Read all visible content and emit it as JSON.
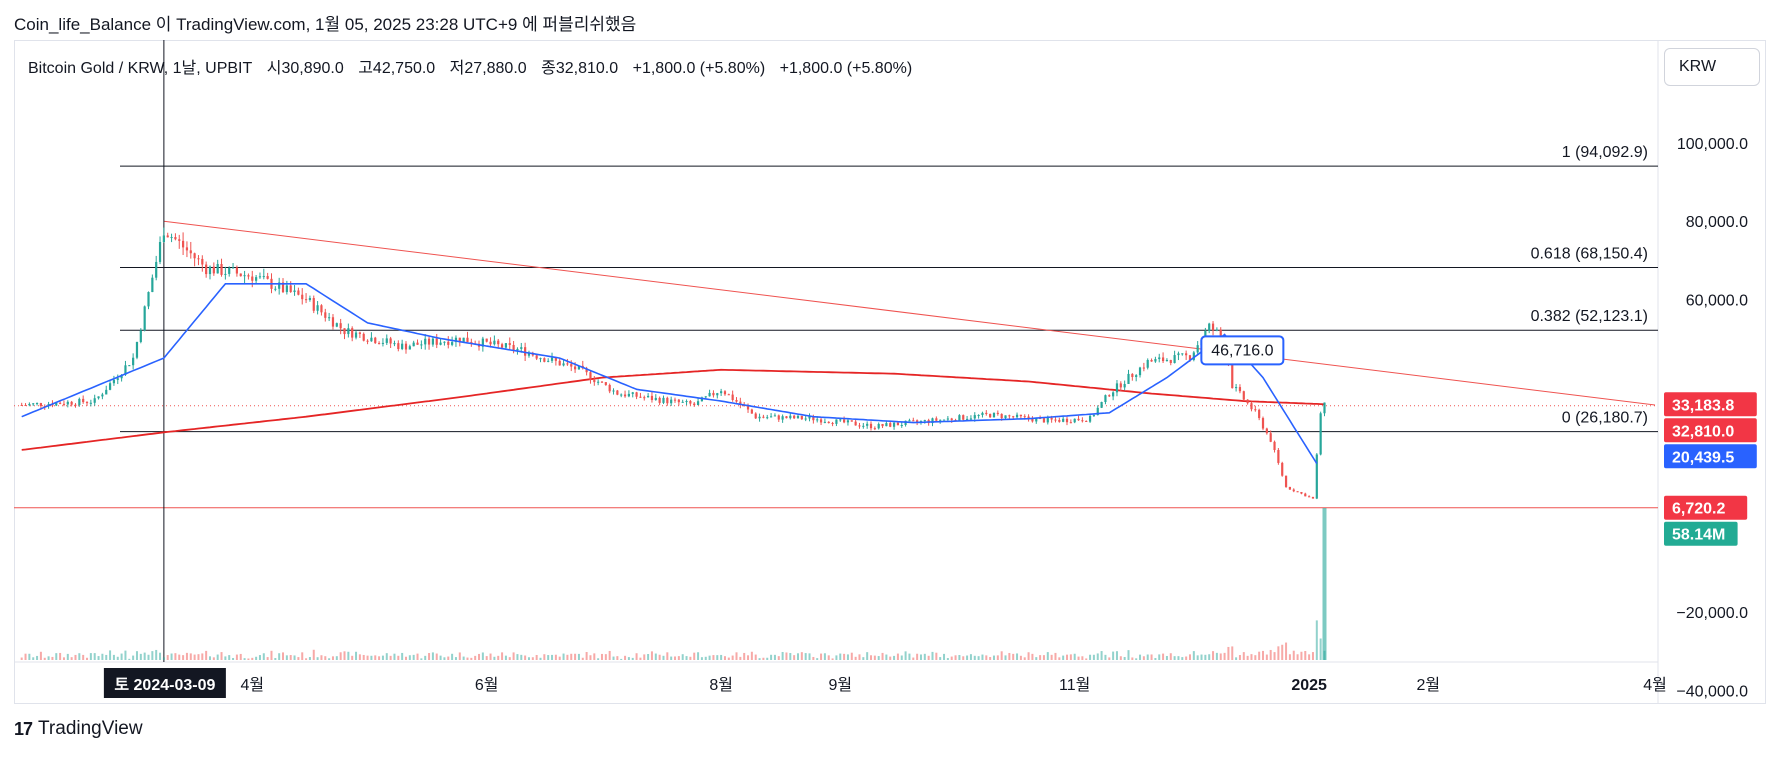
{
  "header": {
    "publisher": "Coin_life_Balance",
    "caption_rest": "이 TradingView.com, 1월 05, 2025 23:28 UTC+9 에 퍼블리쉬했음"
  },
  "legend": {
    "symbol": "Bitcoin Gold / KRW, 1날, UPBIT",
    "open": "시30,890.0",
    "high": "고42,750.0",
    "low": "저27,880.0",
    "close": "종32,810.0",
    "change1": "+1,800.0 (+5.80%)",
    "change2": "+1,800.0 (+5.80%)"
  },
  "currency_button": "KRW",
  "footer": {
    "brand": "TradingView",
    "mark": "17"
  },
  "colors": {
    "up": "#26a69a",
    "down": "#ef5350",
    "ma_blue": "#2962ff",
    "ma_red": "#e52525",
    "fib_line": "#131722",
    "tag_red": "#f23645",
    "tag_blue": "#2962ff",
    "tag_teal": "#22ab94"
  },
  "chart_data": {
    "type": "candlestick",
    "y_ticks": [
      "100,000.0",
      "80,000.0",
      "60,000.0",
      "−20,000.0",
      "−40,000.0"
    ],
    "y_tick_values": [
      100000,
      80000,
      60000,
      -20000,
      -40000
    ],
    "x_ticks": [
      "4월",
      "6월",
      "8월",
      "9월",
      "11월",
      "2025",
      "2월",
      "4월"
    ],
    "x_tick_dates": [
      "2024-04-01",
      "2024-06-01",
      "2024-08-01",
      "2024-09-01",
      "2024-11-01",
      "2025-01-01",
      "2025-02-01",
      "2025-04-01"
    ],
    "crosshair_date_label": "토 2024-03-09",
    "crosshair_date": "2024-03-09",
    "fib_levels": [
      {
        "label": "1 (94,092.9)",
        "value": 94092.9
      },
      {
        "label": "0.618 (68,150.4)",
        "value": 68150.4
      },
      {
        "label": "0.382 (52,123.1)",
        "value": 52123.1
      },
      {
        "label": "0 (26,180.7)",
        "value": 26180.7
      }
    ],
    "horizontal_line": 6720.2,
    "trendline": {
      "start": [
        "2024-03-09",
        80000
      ],
      "end": [
        "2025-04-01",
        33000
      ]
    },
    "annotation": {
      "label": "46,716.0",
      "date": "2024-12-05",
      "value": 46716.0
    },
    "price_tags": [
      {
        "label": "33,183.8",
        "value": 33183.8,
        "color": "red"
      },
      {
        "label": "32,810.0",
        "value": 32810.0,
        "color": "red"
      },
      {
        "label": "20,439.5",
        "value": 20439.5,
        "color": "blue"
      },
      {
        "label": "6,720.2",
        "value": 6720.2,
        "color": "red"
      },
      {
        "label": "58.14M",
        "value": 58140000,
        "color": "teal"
      }
    ],
    "price_keypoints": [
      [
        "2024-02-01",
        33000
      ],
      [
        "2024-02-20",
        34000
      ],
      [
        "2024-03-01",
        45000
      ],
      [
        "2024-03-09",
        78000
      ],
      [
        "2024-03-20",
        68000
      ],
      [
        "2024-04-01",
        66000
      ],
      [
        "2024-04-15",
        60000
      ],
      [
        "2024-04-25",
        52000
      ],
      [
        "2024-05-10",
        48000
      ],
      [
        "2024-05-25",
        50000
      ],
      [
        "2024-06-10",
        47000
      ],
      [
        "2024-06-25",
        42000
      ],
      [
        "2024-07-05",
        36000
      ],
      [
        "2024-07-25",
        33000
      ],
      [
        "2024-08-01",
        37000
      ],
      [
        "2024-08-10",
        30000
      ],
      [
        "2024-08-25",
        29500
      ],
      [
        "2024-09-10",
        27500
      ],
      [
        "2024-09-25",
        29000
      ],
      [
        "2024-10-10",
        30500
      ],
      [
        "2024-10-25",
        29000
      ],
      [
        "2024-11-05",
        29500
      ],
      [
        "2024-11-10",
        36000
      ],
      [
        "2024-11-20",
        44000
      ],
      [
        "2024-12-01",
        45500
      ],
      [
        "2024-12-06",
        53000
      ],
      [
        "2024-12-10",
        50000
      ],
      [
        "2024-12-12",
        38000
      ],
      [
        "2024-12-18",
        31000
      ],
      [
        "2024-12-22",
        24000
      ],
      [
        "2024-12-26",
        12000
      ],
      [
        "2025-01-02",
        9000
      ],
      [
        "2025-01-04",
        31000
      ],
      [
        "2025-01-05",
        32810
      ]
    ],
    "ma_fast_keypoints": [
      [
        "2024-02-01",
        30000
      ],
      [
        "2024-03-09",
        45000
      ],
      [
        "2024-03-25",
        64000
      ],
      [
        "2024-04-15",
        64000
      ],
      [
        "2024-05-01",
        54000
      ],
      [
        "2024-05-20",
        50000
      ],
      [
        "2024-06-20",
        45000
      ],
      [
        "2024-07-10",
        37000
      ],
      [
        "2024-08-01",
        34000
      ],
      [
        "2024-08-25",
        30000
      ],
      [
        "2024-09-20",
        28500
      ],
      [
        "2024-10-20",
        29500
      ],
      [
        "2024-11-10",
        31000
      ],
      [
        "2024-11-25",
        40000
      ],
      [
        "2024-12-10",
        51000
      ],
      [
        "2024-12-20",
        40000
      ],
      [
        "2025-01-03",
        18000
      ]
    ],
    "ma_slow_keypoints": [
      [
        "2024-02-01",
        21500
      ],
      [
        "2024-03-09",
        26000
      ],
      [
        "2024-04-15",
        30000
      ],
      [
        "2024-05-25",
        35000
      ],
      [
        "2024-07-01",
        40000
      ],
      [
        "2024-08-01",
        42000
      ],
      [
        "2024-09-15",
        41000
      ],
      [
        "2024-10-20",
        39000
      ],
      [
        "2024-11-20",
        36000
      ],
      [
        "2024-12-15",
        34000
      ],
      [
        "2025-01-05",
        33183.8
      ]
    ]
  }
}
